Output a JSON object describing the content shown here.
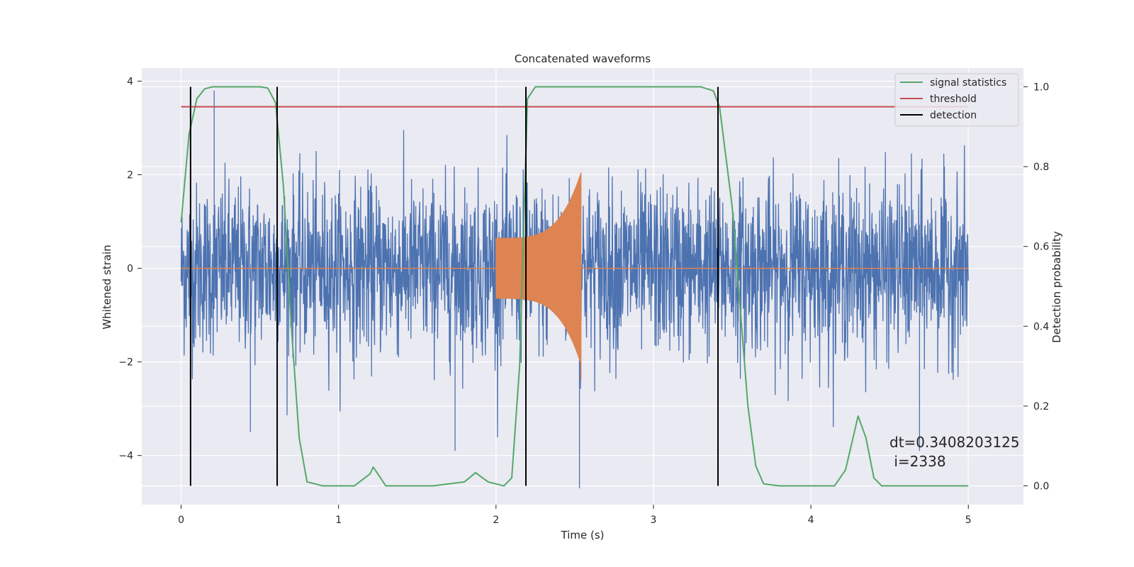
{
  "chart_data": {
    "type": "line",
    "title": "Concatenated waveforms",
    "xlabel": "Time (s)",
    "ylabel": "Whitened strain",
    "ylabel_right": "Detection probability",
    "xlim": [
      -0.25,
      5.35
    ],
    "ylim": [
      -5.05,
      4.28
    ],
    "ylim_right": [
      -0.047,
      1.047
    ],
    "x_ticks": [
      0,
      1,
      2,
      3,
      4,
      5
    ],
    "y_ticks": [
      -4,
      -2,
      0,
      2,
      4
    ],
    "y_ticks_right": [
      0.0,
      0.2,
      0.4,
      0.6,
      0.8,
      1.0
    ],
    "x_tick_labels": [
      "0",
      "1",
      "2",
      "3",
      "4",
      "5"
    ],
    "y_tick_labels": [
      "−4",
      "−2",
      "0",
      "2",
      "4"
    ],
    "y_tick_labels_right": [
      "0.0",
      "0.2",
      "0.4",
      "0.6",
      "0.8",
      "1.0"
    ],
    "grid": true,
    "legend_position": "top-right",
    "series": [
      {
        "name": "signal statistics",
        "axis": "right",
        "color": "#55a868",
        "x": [
          0.0,
          0.05,
          0.1,
          0.15,
          0.2,
          0.3,
          0.5,
          0.55,
          0.6,
          0.65,
          0.7,
          0.75,
          0.8,
          0.9,
          1.1,
          1.2,
          1.22,
          1.25,
          1.3,
          1.6,
          1.8,
          1.87,
          1.95,
          2.05,
          2.1,
          2.15,
          2.2,
          2.25,
          2.35,
          3.3,
          3.38,
          3.42,
          3.5,
          3.6,
          3.65,
          3.7,
          3.8,
          4.15,
          4.22,
          4.3,
          4.35,
          4.4,
          4.45,
          4.6,
          5.0
        ],
        "y": [
          0.66,
          0.88,
          0.97,
          0.995,
          1.0,
          1.0,
          1.0,
          0.997,
          0.96,
          0.75,
          0.4,
          0.12,
          0.01,
          0.0,
          0.0,
          0.03,
          0.047,
          0.03,
          0.0,
          0.0,
          0.01,
          0.033,
          0.01,
          0.0,
          0.02,
          0.3,
          0.97,
          1.0,
          1.0,
          1.0,
          0.99,
          0.95,
          0.7,
          0.2,
          0.05,
          0.005,
          0.0,
          0.0,
          0.04,
          0.175,
          0.12,
          0.02,
          0.0,
          0.0,
          0.0
        ]
      },
      {
        "name": "threshold",
        "axis": "right",
        "color": "#c44e52",
        "x": [
          0.0,
          5.0
        ],
        "y": [
          0.95,
          0.95
        ]
      },
      {
        "name": "detection",
        "axis": "right",
        "color": "#000000",
        "type": "vlines",
        "x": [
          0.06,
          0.61,
          2.19,
          3.41
        ],
        "ymin": 0.0,
        "ymax": 1.0
      }
    ],
    "noise_series": {
      "color": "#4c72b0",
      "x_range": [
        0.0,
        5.0
      ],
      "base_amplitude": 1.15,
      "spike_max": 3.8,
      "spike_min": -4.7
    },
    "chirp_series": {
      "color": "#dd8452",
      "x_range": [
        2.0,
        2.54
      ],
      "amplitude_start": 0.65,
      "amplitude_end": 2.05
    },
    "annotation": {
      "line1": "dt=0.3408203125",
      "line2": " i=2338"
    },
    "colors": {
      "plot_background": "#eaeaf2",
      "grid": "#ffffff"
    }
  }
}
